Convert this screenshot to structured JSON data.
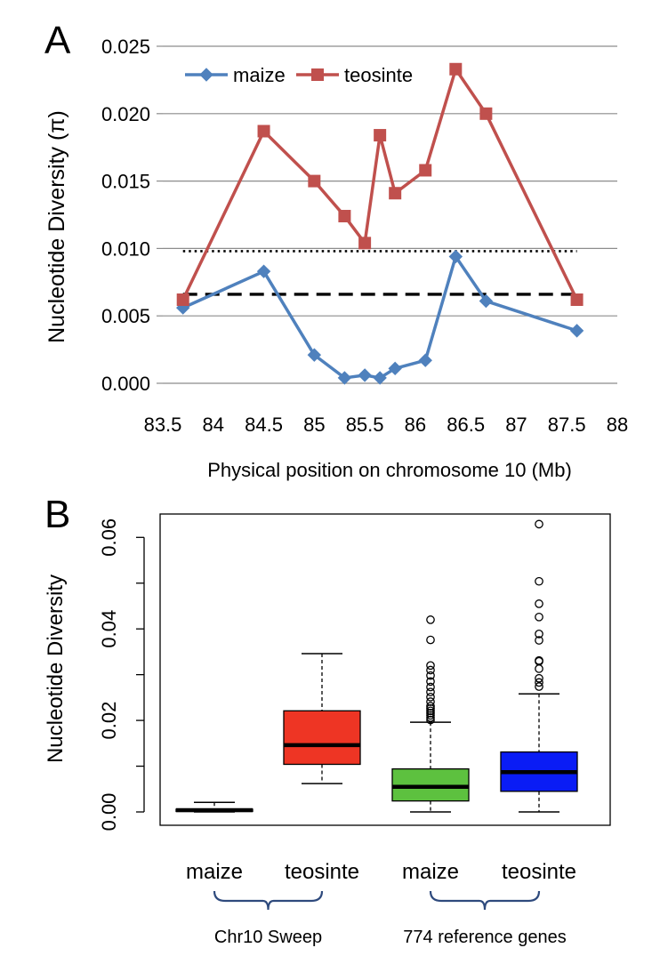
{
  "panels": {
    "a": {
      "label": "A"
    },
    "b": {
      "label": "B"
    }
  },
  "colors": {
    "maize_line": "#4F81BD",
    "teosinte_line": "#C0504D",
    "box_chr10_maize": "#000000",
    "box_chr10_teosinte": "#EE3524",
    "box_ref_maize": "#5DC13F",
    "box_ref_teosinte": "#0A1CF5"
  },
  "chart_data": [
    {
      "type": "line",
      "panel": "A",
      "title": "",
      "xlabel": "Physical position on chromosome 10 (Mb)",
      "ylabel": "Nucleotide Diversity (π)",
      "xlim": [
        83.5,
        88
      ],
      "ylim": [
        0,
        0.025
      ],
      "x_ticks": [
        "83.5",
        "84",
        "84.5",
        "85",
        "85.5",
        "86",
        "86.5",
        "87",
        "87.5",
        "88"
      ],
      "y_ticks": [
        "0.000",
        "0.005",
        "0.010",
        "0.015",
        "0.020",
        "0.025"
      ],
      "grid": true,
      "legend_position": "top-left",
      "series": [
        {
          "name": "maize",
          "marker": "diamond",
          "x": [
            83.7,
            84.5,
            85.0,
            85.3,
            85.5,
            85.65,
            85.8,
            86.1,
            86.4,
            86.7,
            87.6
          ],
          "y": [
            0.0056,
            0.0083,
            0.0021,
            0.0004,
            0.0006,
            0.0004,
            0.0011,
            0.0017,
            0.0094,
            0.0061,
            0.0039
          ]
        },
        {
          "name": "teosinte",
          "marker": "square",
          "x": [
            83.7,
            84.5,
            85.0,
            85.3,
            85.5,
            85.65,
            85.8,
            86.1,
            86.4,
            86.7,
            87.6
          ],
          "y": [
            0.0062,
            0.0187,
            0.015,
            0.0124,
            0.0104,
            0.0184,
            0.0141,
            0.0158,
            0.0233,
            0.02,
            0.0062
          ]
        }
      ],
      "reference_lines": [
        {
          "style": "dotted",
          "y": 0.0098,
          "x_range": [
            83.7,
            87.6
          ]
        },
        {
          "style": "dashed",
          "y": 0.0066,
          "x_range": [
            83.7,
            87.6
          ]
        }
      ]
    },
    {
      "type": "box",
      "panel": "B",
      "title": "",
      "ylabel": "Nucleotide Diversity",
      "ylim": [
        0,
        0.065
      ],
      "y_ticks": [
        "0.00",
        "0.02",
        "0.04",
        "0.06"
      ],
      "categories": [
        "maize",
        "teosinte",
        "maize",
        "teosinte"
      ],
      "groups": [
        {
          "label": "Chr10 Sweep",
          "members": [
            0,
            1
          ]
        },
        {
          "label": "774 reference genes",
          "members": [
            2,
            3
          ]
        }
      ],
      "boxes": [
        {
          "whisker_low": 0.0,
          "q1": 0.0001,
          "median": 0.0004,
          "q3": 0.0006,
          "whisker_high": 0.0021,
          "outliers": []
        },
        {
          "whisker_low": 0.0062,
          "q1": 0.0104,
          "median": 0.0146,
          "q3": 0.0221,
          "whisker_high": 0.0346,
          "outliers": []
        },
        {
          "whisker_low": 0.0,
          "q1": 0.0024,
          "median": 0.0055,
          "q3": 0.0094,
          "whisker_high": 0.0196,
          "outliers": [
            0.0201,
            0.0206,
            0.0211,
            0.0216,
            0.0221,
            0.0226,
            0.0231,
            0.0241,
            0.0251,
            0.0262,
            0.0273,
            0.0285,
            0.0298,
            0.031,
            0.032,
            0.0376,
            0.042
          ]
        },
        {
          "whisker_low": 0.0,
          "q1": 0.0045,
          "median": 0.0087,
          "q3": 0.0131,
          "whisker_high": 0.0258,
          "outliers": [
            0.0274,
            0.0283,
            0.0292,
            0.0313,
            0.0329,
            0.0331,
            0.0375,
            0.0389,
            0.0426,
            0.0455,
            0.0504,
            0.0629
          ]
        }
      ]
    }
  ]
}
